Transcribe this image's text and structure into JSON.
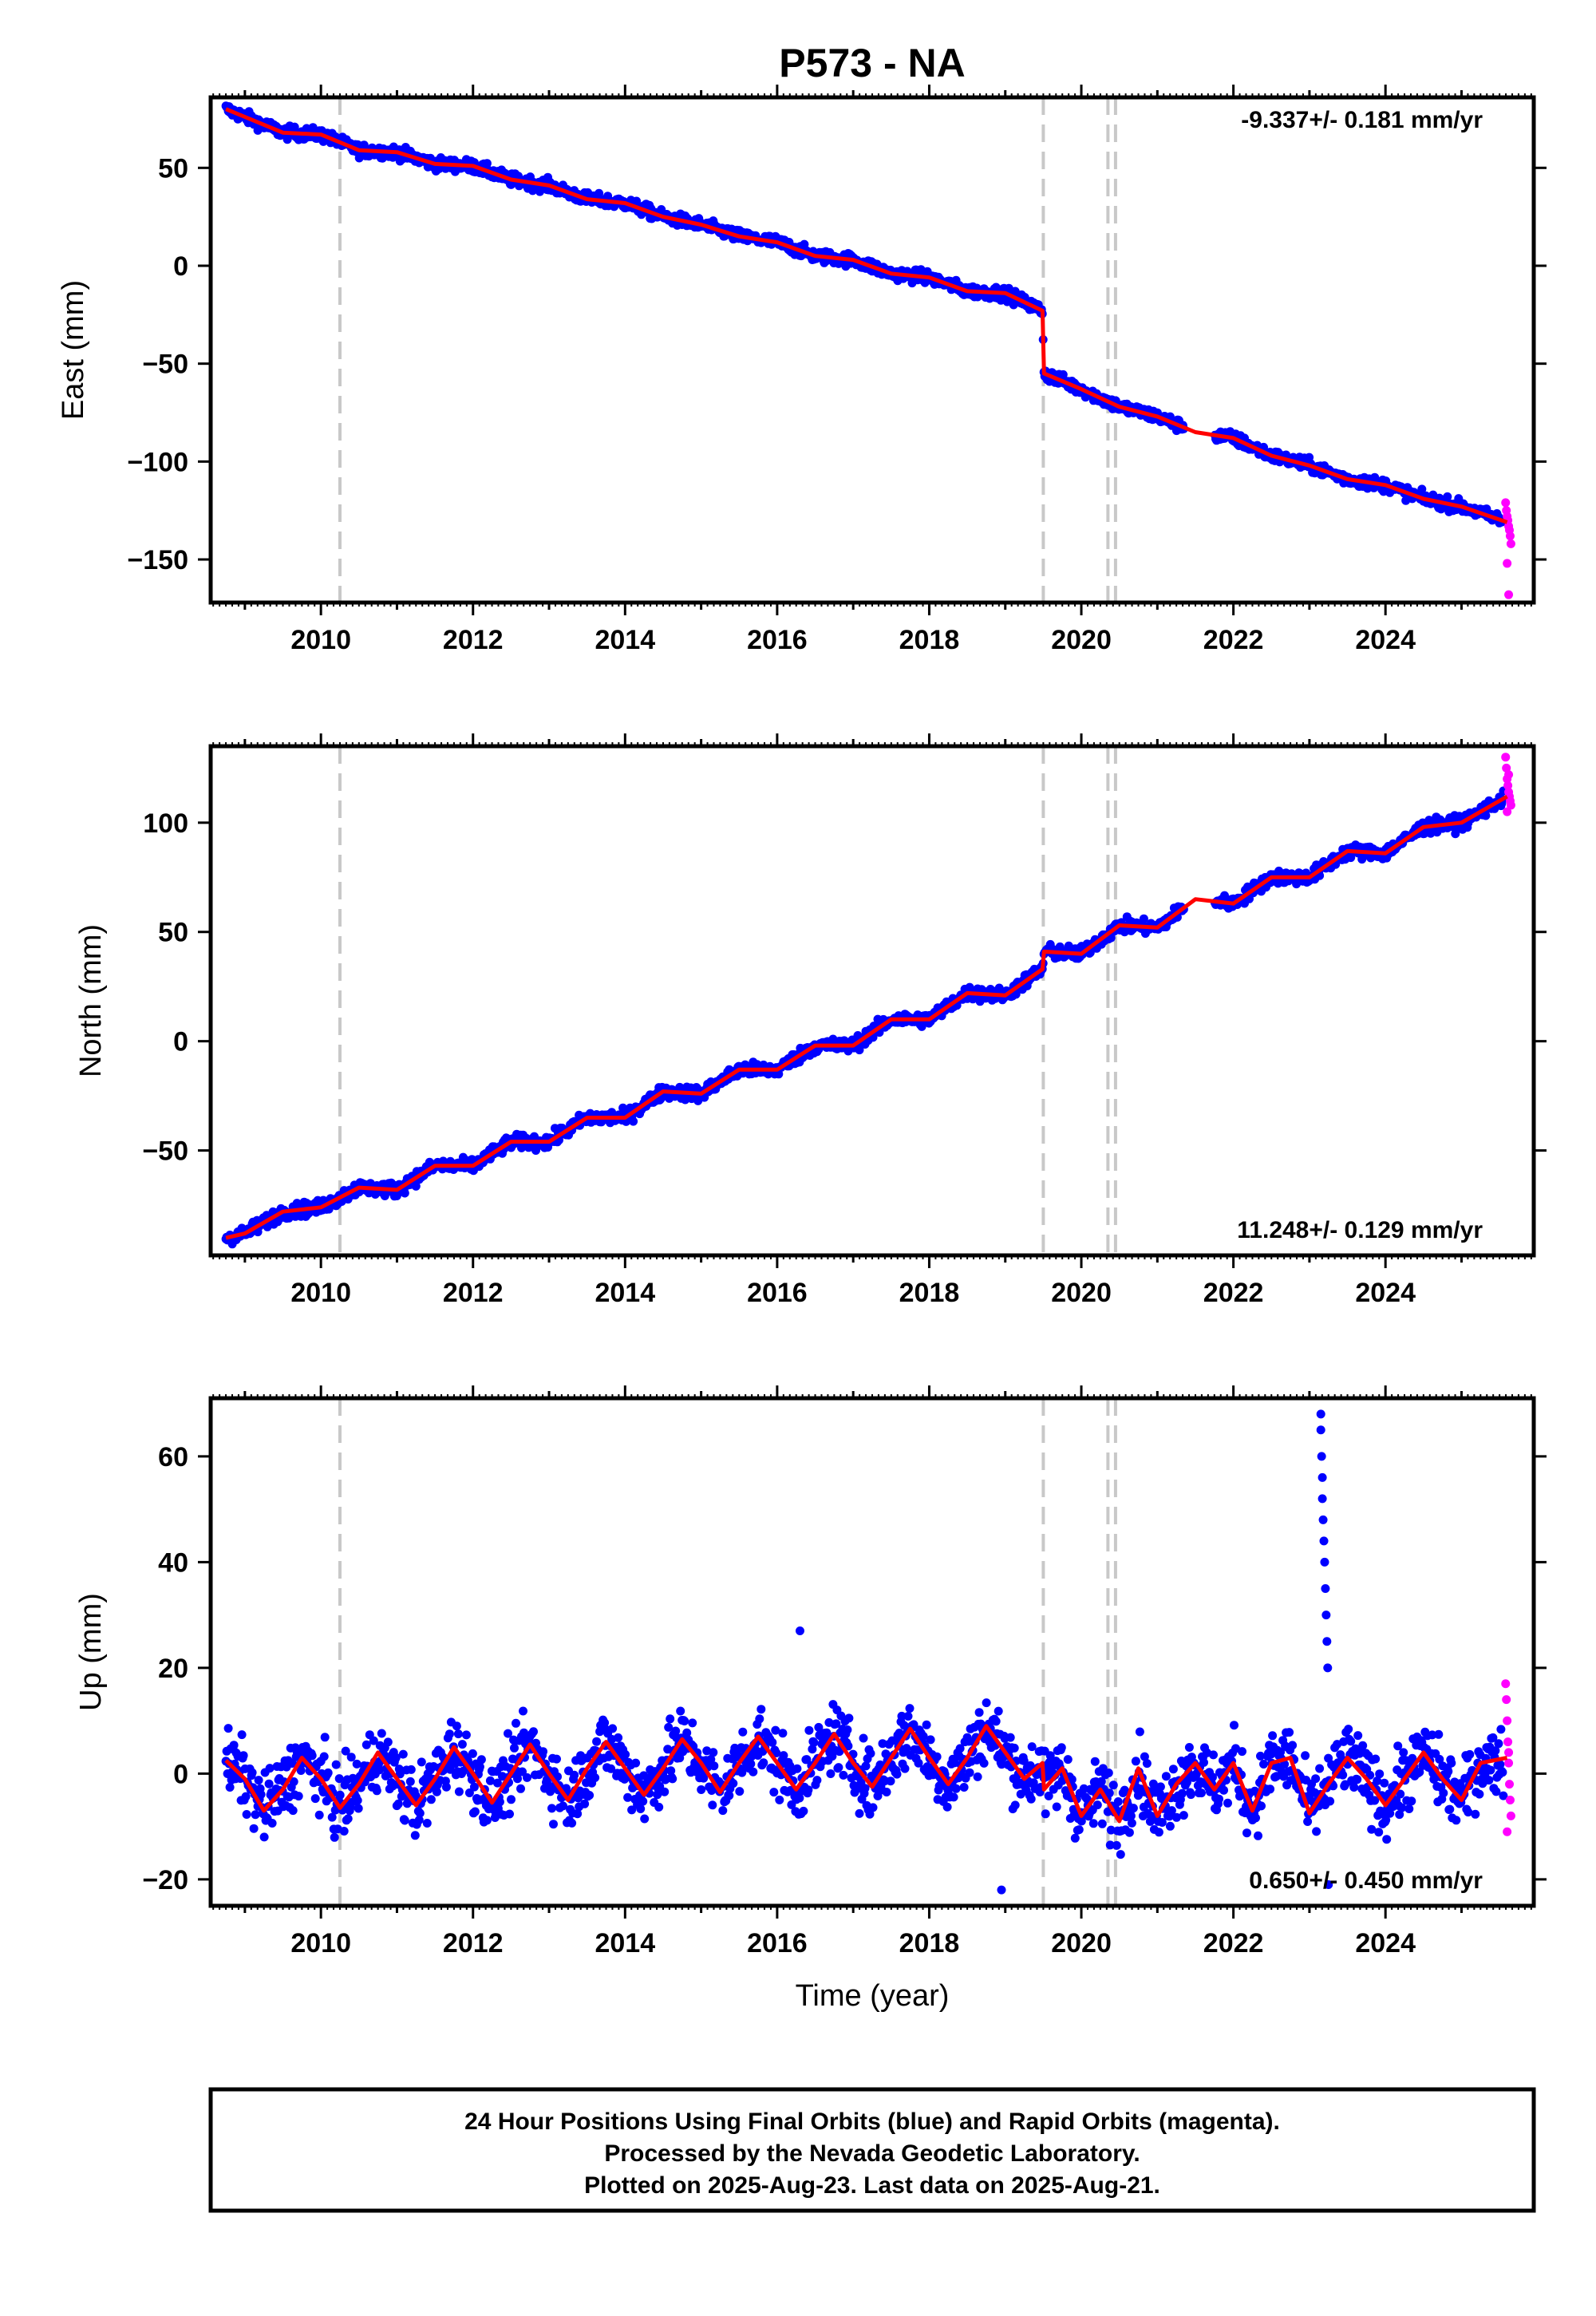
{
  "chart_data": {
    "title": "P573 - NA",
    "type": "scatter",
    "xlabel": "Time (year)",
    "xlim": [
      2008.55,
      2025.95
    ],
    "xticks": [
      2010,
      2012,
      2014,
      2016,
      2018,
      2020,
      2022,
      2024
    ],
    "event_lines": [
      2010.25,
      2019.5,
      2020.35,
      2020.45
    ],
    "colors": {
      "final_orbits": "#0000ff",
      "rapid_orbits": "#ff00ff",
      "model": "#ff0000",
      "event_line": "#c8c8c8"
    },
    "panels": [
      {
        "ylabel": "East (mm)",
        "ylim": [
          -172,
          86
        ],
        "yticks": [
          -150,
          -100,
          -50,
          0,
          50
        ],
        "rate_label": "-9.337+/- 0.181 mm/yr",
        "rate_position": "top-right",
        "model_curve": {
          "x": [
            2008.75,
            2009.0,
            2009.5,
            2010.0,
            2010.5,
            2011.0,
            2011.5,
            2012.0,
            2012.5,
            2013.0,
            2013.5,
            2014.0,
            2014.5,
            2015.0,
            2015.5,
            2016.0,
            2016.5,
            2017.0,
            2017.5,
            2018.0,
            2018.5,
            2019.0,
            2019.49,
            2019.51,
            2020.0,
            2020.5,
            2021.0,
            2021.5,
            2022.0,
            2022.5,
            2023.0,
            2023.5,
            2024.0,
            2024.5,
            2025.0,
            2025.6
          ],
          "y": [
            80,
            76,
            68,
            67,
            59,
            58,
            52,
            51,
            44,
            41,
            34,
            32,
            25,
            21,
            15,
            12,
            5,
            3,
            -4,
            -6,
            -13,
            -14,
            -23,
            -55,
            -63,
            -72,
            -77,
            -85,
            -88,
            -97,
            -102,
            -109,
            -112,
            -119,
            -123,
            -131
          ]
        },
        "rapid_points": {
          "x": [
            2025.58,
            2025.59,
            2025.6,
            2025.61,
            2025.62,
            2025.63,
            2025.64,
            2025.65,
            2025.6,
            2025.62
          ],
          "y": [
            -121,
            -125,
            -128,
            -130,
            -133,
            -135,
            -138,
            -142,
            -152,
            -168
          ]
        }
      },
      {
        "ylabel": "North (mm)",
        "ylim": [
          -98,
          135
        ],
        "yticks": [
          -50,
          0,
          50,
          100
        ],
        "rate_label": "11.248+/- 0.129 mm/yr",
        "rate_position": "bottom-right",
        "model_curve": {
          "x": [
            2008.75,
            2009.0,
            2009.5,
            2010.0,
            2010.5,
            2011.0,
            2011.5,
            2012.0,
            2012.5,
            2013.0,
            2013.5,
            2014.0,
            2014.5,
            2015.0,
            2015.5,
            2016.0,
            2016.5,
            2017.0,
            2017.5,
            2018.0,
            2018.5,
            2019.0,
            2019.49,
            2019.51,
            2020.0,
            2020.5,
            2021.0,
            2021.5,
            2022.0,
            2022.5,
            2023.0,
            2023.5,
            2024.0,
            2024.5,
            2025.0,
            2025.6
          ],
          "y": [
            -90,
            -88,
            -78,
            -76,
            -67,
            -68,
            -57,
            -57,
            -46,
            -46,
            -35,
            -35,
            -23,
            -24,
            -13,
            -13,
            -2,
            -2,
            10,
            10,
            22,
            21,
            33,
            41,
            40,
            53,
            52,
            65,
            63,
            75,
            75,
            87,
            86,
            98,
            100,
            112
          ]
        },
        "rapid_points": {
          "x": [
            2025.58,
            2025.59,
            2025.6,
            2025.61,
            2025.62,
            2025.63,
            2025.64,
            2025.65,
            2025.6,
            2025.62
          ],
          "y": [
            130,
            125,
            120,
            117,
            114,
            112,
            110,
            108,
            105,
            122
          ]
        }
      },
      {
        "ylabel": "Up (mm)",
        "ylim": [
          -25,
          71
        ],
        "yticks": [
          -20,
          0,
          20,
          40,
          60
        ],
        "rate_label": "0.650+/- 0.450 mm/yr",
        "rate_position": "bottom-right",
        "model_curve": {
          "x": [
            2008.75,
            2009.0,
            2009.25,
            2009.5,
            2009.75,
            2010.0,
            2010.25,
            2010.5,
            2010.75,
            2011.0,
            2011.25,
            2011.5,
            2011.75,
            2012.0,
            2012.25,
            2012.5,
            2012.75,
            2013.0,
            2013.25,
            2013.5,
            2013.75,
            2014.0,
            2014.25,
            2014.5,
            2014.75,
            2015.0,
            2015.25,
            2015.5,
            2015.75,
            2016.0,
            2016.25,
            2016.5,
            2016.75,
            2017.0,
            2017.25,
            2017.5,
            2017.75,
            2018.0,
            2018.25,
            2018.5,
            2018.75,
            2019.0,
            2019.25,
            2019.49,
            2019.51,
            2019.75,
            2020.0,
            2020.25,
            2020.5,
            2020.75,
            2021.0,
            2021.25,
            2021.5,
            2021.75,
            2022.0,
            2022.25,
            2022.5,
            2022.75,
            2023.0,
            2023.25,
            2023.5,
            2023.75,
            2024.0,
            2024.25,
            2024.5,
            2024.75,
            2025.0,
            2025.25,
            2025.6
          ],
          "y": [
            2.5,
            -1,
            -7,
            -3,
            3,
            -1,
            -6.5,
            -2,
            4,
            -1,
            -6,
            -1,
            5,
            0,
            -5.5,
            0,
            5.5,
            0,
            -5,
            1,
            6,
            1,
            -4,
            1,
            6.5,
            2,
            -3.5,
            2,
            7,
            2,
            -3,
            2,
            7.5,
            2,
            -2.5,
            3,
            8.5,
            3,
            -2,
            3,
            9,
            4,
            -1,
            2,
            -3,
            1,
            -8,
            -3,
            -9,
            1,
            -8,
            -2,
            2,
            -3,
            2,
            -7,
            2,
            3,
            -7.5,
            -2,
            3,
            -1,
            -6,
            -1,
            4,
            -1,
            -5,
            2,
            3
          ]
        },
        "outlier_points": {
          "x": [
            2023.15,
            2023.15,
            2023.16,
            2023.17,
            2023.17,
            2023.18,
            2023.19,
            2023.2,
            2023.21,
            2023.22,
            2023.23,
            2023.24,
            2016.3,
            2018.95,
            2023.25
          ],
          "y": [
            68,
            65,
            60,
            56,
            52,
            48,
            44,
            40,
            35,
            30,
            25,
            20,
            27,
            -22,
            -21
          ]
        },
        "rapid_points": {
          "x": [
            2025.58,
            2025.59,
            2025.6,
            2025.61,
            2025.62,
            2025.63,
            2025.64,
            2025.65,
            2025.6,
            2025.62
          ],
          "y": [
            17,
            14,
            10,
            6,
            2,
            -2,
            -5,
            -8,
            -11,
            4
          ]
        }
      }
    ]
  },
  "footer": {
    "line1": "24 Hour Positions Using Final Orbits (blue) and Rapid Orbits (magenta).",
    "line2": "Processed by the Nevada Geodetic Laboratory.",
    "line3": "Plotted on 2025-Aug-23. Last data on 2025-Aug-21."
  }
}
